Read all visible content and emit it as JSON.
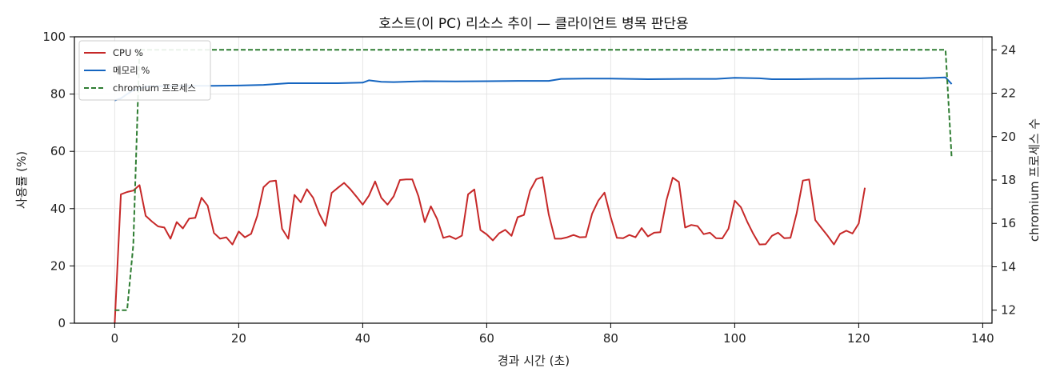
{
  "chart_data": {
    "type": "line",
    "title": "호스트(이 PC) 리소스 추이 — 클라이언트 병목 판단용",
    "xlabel": "경과 시간 (초)",
    "ylabel": "사용률 (%)",
    "y2label": "chromium 프로세스 수",
    "xlim": [
      -6.5,
      141.5
    ],
    "ylim": [
      0,
      100
    ],
    "y2lim": [
      11.4,
      24.6
    ],
    "x_ticks": [
      0,
      20,
      40,
      60,
      80,
      100,
      120,
      140
    ],
    "y_ticks": [
      0,
      20,
      40,
      60,
      80,
      100
    ],
    "y2_ticks": [
      12,
      14,
      16,
      18,
      20,
      22,
      24
    ],
    "grid": true,
    "legend_position": "top-left",
    "series": [
      {
        "name": "CPU %",
        "axis": "left",
        "color": "#c62828",
        "style": "solid",
        "points": [
          [
            0,
            0
          ],
          [
            1,
            45
          ],
          [
            2,
            45.8
          ],
          [
            3,
            46.3
          ],
          [
            4,
            48.2
          ],
          [
            5,
            37.5
          ],
          [
            6,
            35.5
          ],
          [
            7,
            33.8
          ],
          [
            8,
            33.4
          ],
          [
            9,
            29.5
          ],
          [
            10,
            35.3
          ],
          [
            11,
            33.1
          ],
          [
            12,
            36.5
          ],
          [
            13,
            36.8
          ],
          [
            14,
            43.8
          ],
          [
            15,
            41
          ],
          [
            16,
            31.5
          ],
          [
            17,
            29.5
          ],
          [
            18,
            30
          ],
          [
            19,
            27.5
          ],
          [
            20,
            32
          ],
          [
            21,
            30
          ],
          [
            22,
            31.2
          ],
          [
            23,
            37.5
          ],
          [
            24,
            47.5
          ],
          [
            25,
            49.5
          ],
          [
            26,
            49.8
          ],
          [
            27,
            33
          ],
          [
            28,
            29.5
          ],
          [
            29,
            44.8
          ],
          [
            30,
            42.2
          ],
          [
            31,
            46.8
          ],
          [
            32,
            43.8
          ],
          [
            33,
            38.2
          ],
          [
            34,
            34
          ],
          [
            35,
            45.5
          ],
          [
            36,
            47.3
          ],
          [
            37,
            49
          ],
          [
            38,
            46.8
          ],
          [
            39,
            44.2
          ],
          [
            40,
            41.4
          ],
          [
            41,
            44.5
          ],
          [
            42,
            49.5
          ],
          [
            43,
            43.8
          ],
          [
            44,
            41.4
          ],
          [
            45,
            44.3
          ],
          [
            46,
            50
          ],
          [
            47,
            50.2
          ],
          [
            48,
            50.2
          ],
          [
            49,
            44.3
          ],
          [
            50,
            35.3
          ],
          [
            51,
            40.8
          ],
          [
            52,
            36.4
          ],
          [
            53,
            29.8
          ],
          [
            54,
            30.4
          ],
          [
            55,
            29.4
          ],
          [
            56,
            30.6
          ],
          [
            57,
            45
          ],
          [
            58,
            46.7
          ],
          [
            59,
            32.5
          ],
          [
            60,
            31
          ],
          [
            61,
            28.9
          ],
          [
            62,
            31.4
          ],
          [
            63,
            32.6
          ],
          [
            64,
            30.5
          ],
          [
            65,
            37
          ],
          [
            66,
            37.8
          ],
          [
            67,
            46.3
          ],
          [
            68,
            50.3
          ],
          [
            69,
            51
          ],
          [
            70,
            38
          ],
          [
            71,
            29.5
          ],
          [
            72,
            29.5
          ],
          [
            73,
            30
          ],
          [
            74,
            30.8
          ],
          [
            75,
            30
          ],
          [
            76,
            30.1
          ],
          [
            77,
            38.2
          ],
          [
            78,
            42.8
          ],
          [
            79,
            45.6
          ],
          [
            80,
            37
          ],
          [
            81,
            29.8
          ],
          [
            82,
            29.7
          ],
          [
            83,
            30.8
          ],
          [
            84,
            30
          ],
          [
            85,
            33.2
          ],
          [
            86,
            30.3
          ],
          [
            87,
            31.6
          ],
          [
            88,
            31.8
          ],
          [
            89,
            43
          ],
          [
            90,
            50.8
          ],
          [
            91,
            49.3
          ],
          [
            92,
            33.4
          ],
          [
            93,
            34.3
          ],
          [
            94,
            33.9
          ],
          [
            95,
            31.1
          ],
          [
            96,
            31.6
          ],
          [
            97,
            29.7
          ],
          [
            98,
            29.6
          ],
          [
            99,
            33
          ],
          [
            100,
            42.8
          ],
          [
            101,
            40.5
          ],
          [
            102,
            35.5
          ],
          [
            103,
            31.2
          ],
          [
            104,
            27.5
          ],
          [
            105,
            27.6
          ],
          [
            106,
            30.5
          ],
          [
            107,
            31.6
          ],
          [
            108,
            29.7
          ],
          [
            109,
            29.8
          ],
          [
            110,
            38.5
          ],
          [
            111,
            49.8
          ],
          [
            112,
            50.2
          ],
          [
            113,
            36
          ],
          [
            114,
            33.2
          ],
          [
            115,
            30.5
          ],
          [
            116,
            27.5
          ],
          [
            117,
            31.2
          ],
          [
            118,
            32.3
          ],
          [
            119,
            31.3
          ],
          [
            120,
            34.8
          ],
          [
            121,
            47.3
          ]
        ]
      },
      {
        "name": "메모리 %",
        "axis": "left",
        "color": "#1565c0",
        "style": "solid",
        "points": [
          [
            0,
            77.8
          ],
          [
            1,
            78.5
          ],
          [
            2,
            80
          ],
          [
            3,
            81.4
          ],
          [
            5,
            82.6
          ],
          [
            8,
            82.8
          ],
          [
            12,
            82.9
          ],
          [
            16,
            82.9
          ],
          [
            20,
            83
          ],
          [
            24,
            83.2
          ],
          [
            28,
            83.8
          ],
          [
            32,
            83.8
          ],
          [
            36,
            83.8
          ],
          [
            40,
            84
          ],
          [
            41,
            84.8
          ],
          [
            43,
            84.3
          ],
          [
            45,
            84.2
          ],
          [
            50,
            84.5
          ],
          [
            55,
            84.4
          ],
          [
            60,
            84.5
          ],
          [
            65,
            84.6
          ],
          [
            70,
            84.6
          ],
          [
            72,
            85.3
          ],
          [
            76,
            85.4
          ],
          [
            80,
            85.4
          ],
          [
            86,
            85.2
          ],
          [
            92,
            85.3
          ],
          [
            97,
            85.3
          ],
          [
            100,
            85.7
          ],
          [
            104,
            85.5
          ],
          [
            106,
            85.2
          ],
          [
            110,
            85.2
          ],
          [
            115,
            85.3
          ],
          [
            119,
            85.3
          ],
          [
            121,
            85.4
          ],
          [
            125,
            85.5
          ],
          [
            130,
            85.5
          ],
          [
            134,
            85.8
          ],
          [
            135,
            83.5
          ]
        ]
      },
      {
        "name": "chromium 프로세스",
        "axis": "right",
        "color": "#2e7d32",
        "style": "dashed",
        "points": [
          [
            0,
            12
          ],
          [
            2,
            12
          ],
          [
            3,
            15
          ],
          [
            4,
            24
          ],
          [
            134,
            24
          ],
          [
            135,
            19
          ]
        ]
      }
    ]
  }
}
